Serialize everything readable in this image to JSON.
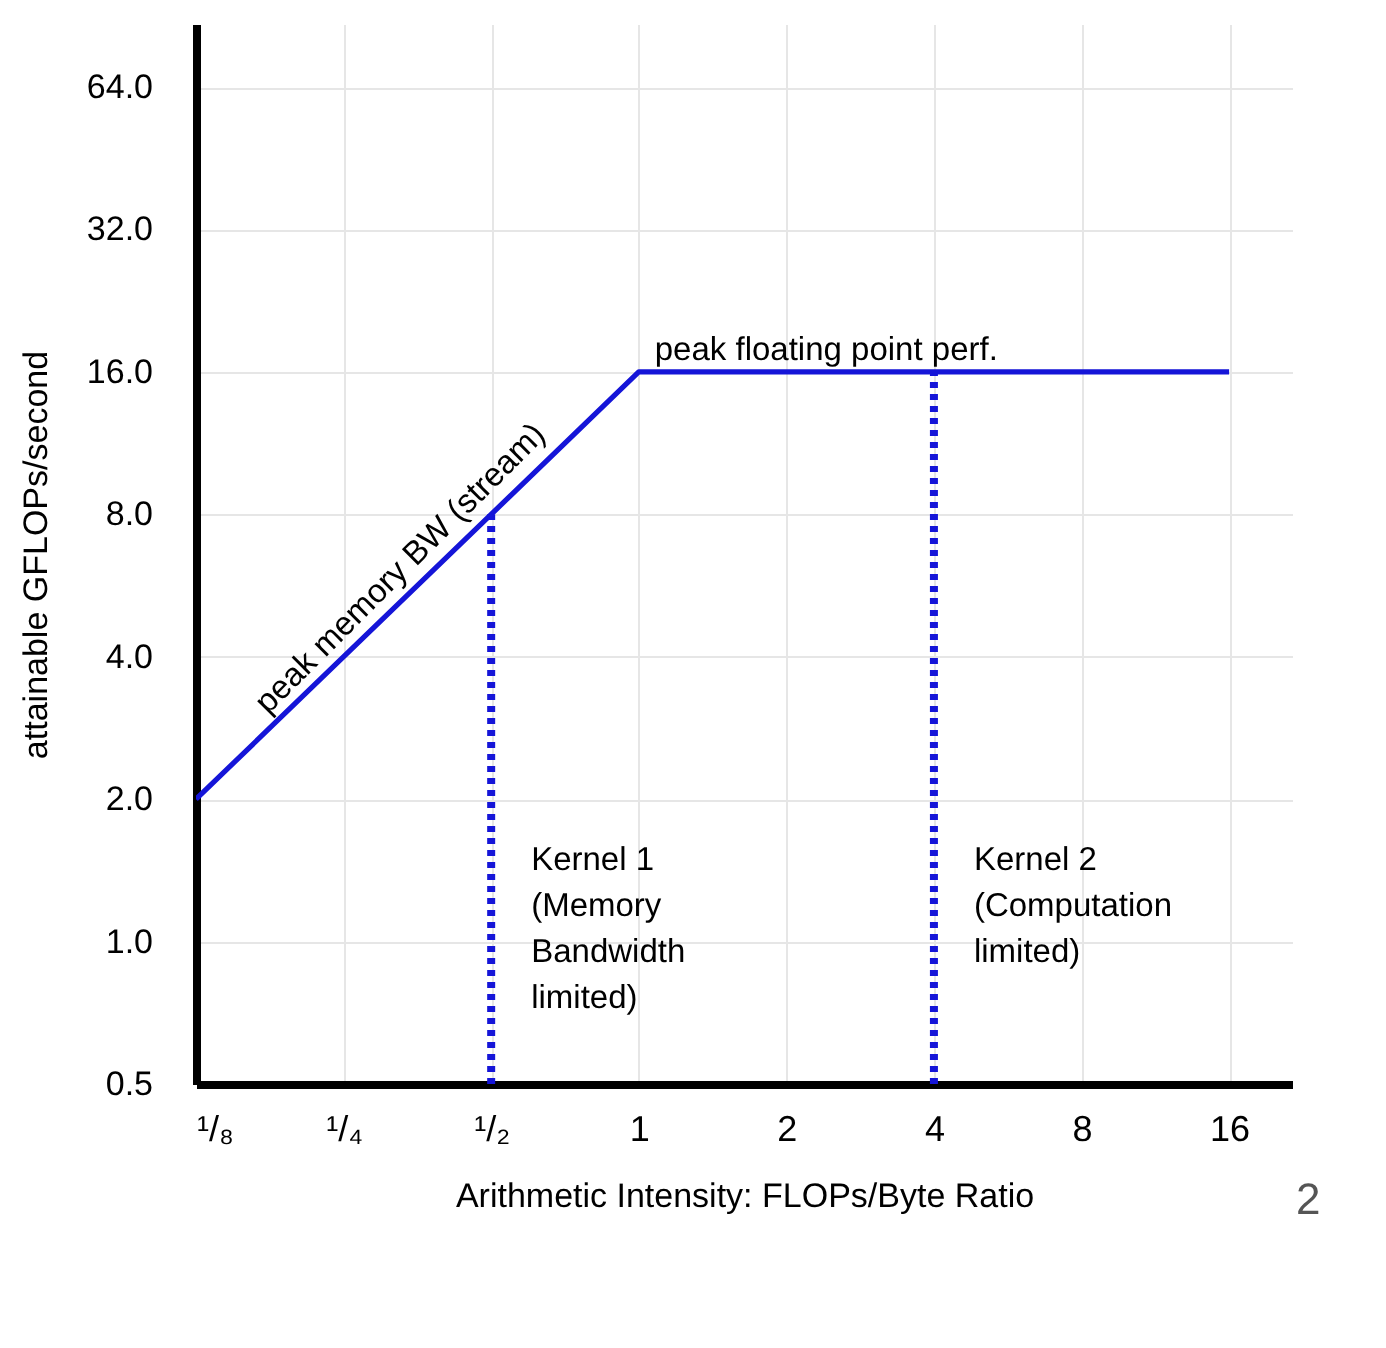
{
  "chart_data": {
    "type": "line",
    "xlabel": "Arithmetic Intensity: FLOPs/Byte Ratio",
    "ylabel": "attainable GFLOPs/second",
    "log": "xy",
    "grid": true,
    "marker": "none",
    "xlim": [
      0.125,
      21.5
    ],
    "ylim": [
      0.5,
      87
    ],
    "xticks": [
      {
        "value": 0.125,
        "label": "¹/₈"
      },
      {
        "value": 0.25,
        "label": "¹/₄"
      },
      {
        "value": 0.5,
        "label": "¹/₂"
      },
      1,
      2,
      4,
      8,
      16
    ],
    "yticks": [
      0.5,
      {
        "value": 1,
        "label": "1.0"
      },
      {
        "value": 2,
        "label": "2.0"
      },
      {
        "value": 4,
        "label": "4.0"
      },
      {
        "value": 8,
        "label": "8.0"
      },
      {
        "value": 16,
        "label": "16.0"
      },
      {
        "value": 32,
        "label": "32.0"
      },
      {
        "value": 64,
        "label": "64.0"
      }
    ],
    "series": [
      {
        "color": "#1515d8",
        "x": [
          0.125,
          1,
          16
        ],
        "values": [
          2,
          16,
          16
        ],
        "line_style": "solid"
      },
      {
        "color": "#1515d8",
        "x": [
          0.5,
          0.5
        ],
        "values": [
          0.5,
          8
        ],
        "line_style": "dotted"
      },
      {
        "color": "#1515d8",
        "x": [
          4,
          4
        ],
        "values": [
          0.5,
          16
        ],
        "line_style": "dotted"
      }
    ],
    "annotations": [
      "peak memory BW (stream)",
      "peak floating point  perf.",
      "Kernel 1\n(Memory\nBandwidth\nlimited)",
      "Kernel 2\n(Computation\nlimited)",
      "2"
    ]
  }
}
